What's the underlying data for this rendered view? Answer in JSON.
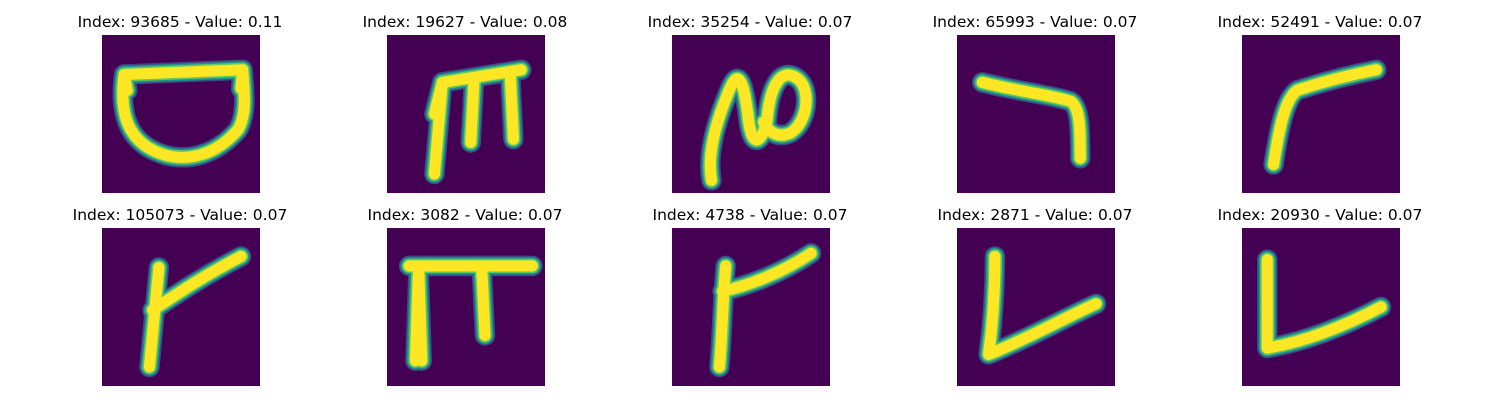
{
  "colors": {
    "background": "#440154",
    "stroke_core": "#fde725",
    "stroke_mid": "#5ec962",
    "stroke_edge": "#21918c",
    "stroke_faint": "#3b528b"
  },
  "panels": [
    {
      "title": "Index: 93685 - Value: 0.11",
      "glyph": "bowl"
    },
    {
      "title": "Index: 19627 - Value: 0.08",
      "glyph": "m-shape"
    },
    {
      "title": "Index: 35254 - Value: 0.07",
      "glyph": "n-loop"
    },
    {
      "title": "Index: 65993 - Value: 0.07",
      "glyph": "boomerang"
    },
    {
      "title": "Index: 52491 - Value: 0.07",
      "glyph": "hook-right"
    },
    {
      "title": "Index: 105073 - Value: 0.07",
      "glyph": "k-branch"
    },
    {
      "title": "Index: 3082 - Value: 0.07",
      "glyph": "pi-shape"
    },
    {
      "title": "Index: 4738 - Value: 0.07",
      "glyph": "r-shape"
    },
    {
      "title": "Index: 2871 - Value: 0.07",
      "glyph": "v-check"
    },
    {
      "title": "Index: 20930 - Value: 0.07",
      "glyph": "l-check"
    }
  ]
}
